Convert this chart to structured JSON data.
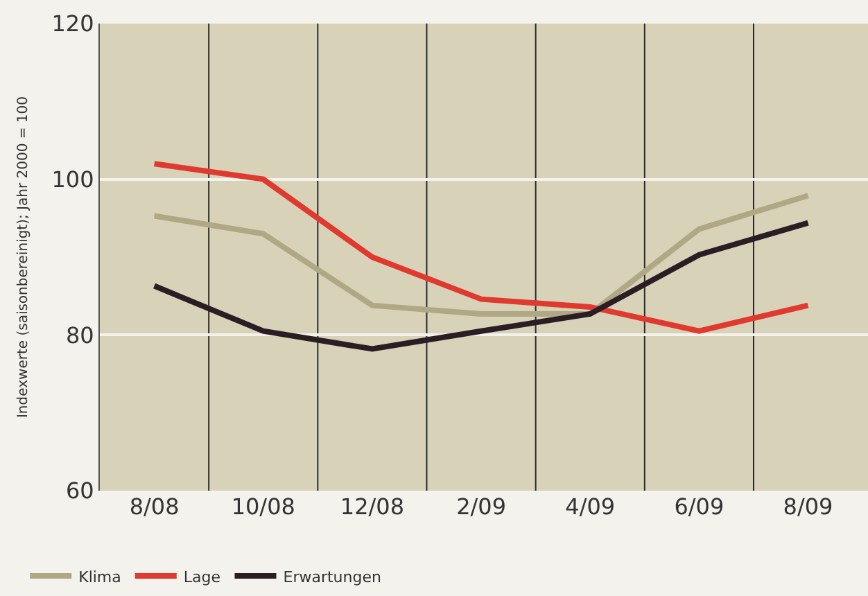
{
  "chart_data": {
    "type": "line",
    "ylabel": "Indexwerte (saisonbereinigt); Jahr 2000 = 100",
    "categories": [
      "8/08",
      "10/08",
      "12/08",
      "2/09",
      "4/09",
      "6/09",
      "8/09"
    ],
    "series": [
      {
        "name": "Klima",
        "color": "#b0a885",
        "values": [
          95.3,
          93,
          83.8,
          82.7,
          82.7,
          93.6,
          97.9
        ]
      },
      {
        "name": "Lage",
        "color": "#e03a30",
        "values": [
          102,
          100,
          90,
          84.6,
          83.6,
          80.5,
          83.8
        ]
      },
      {
        "name": "Erwartungen",
        "color": "#2a1e24",
        "values": [
          86.3,
          80.5,
          78.2,
          80.5,
          82.7,
          90.3,
          94.4
        ]
      }
    ],
    "ylim": [
      60,
      120
    ],
    "yticks": [
      60,
      80,
      100,
      120
    ],
    "grid": true,
    "legend": "bottom left",
    "marker": "none",
    "line_style": "solid"
  }
}
